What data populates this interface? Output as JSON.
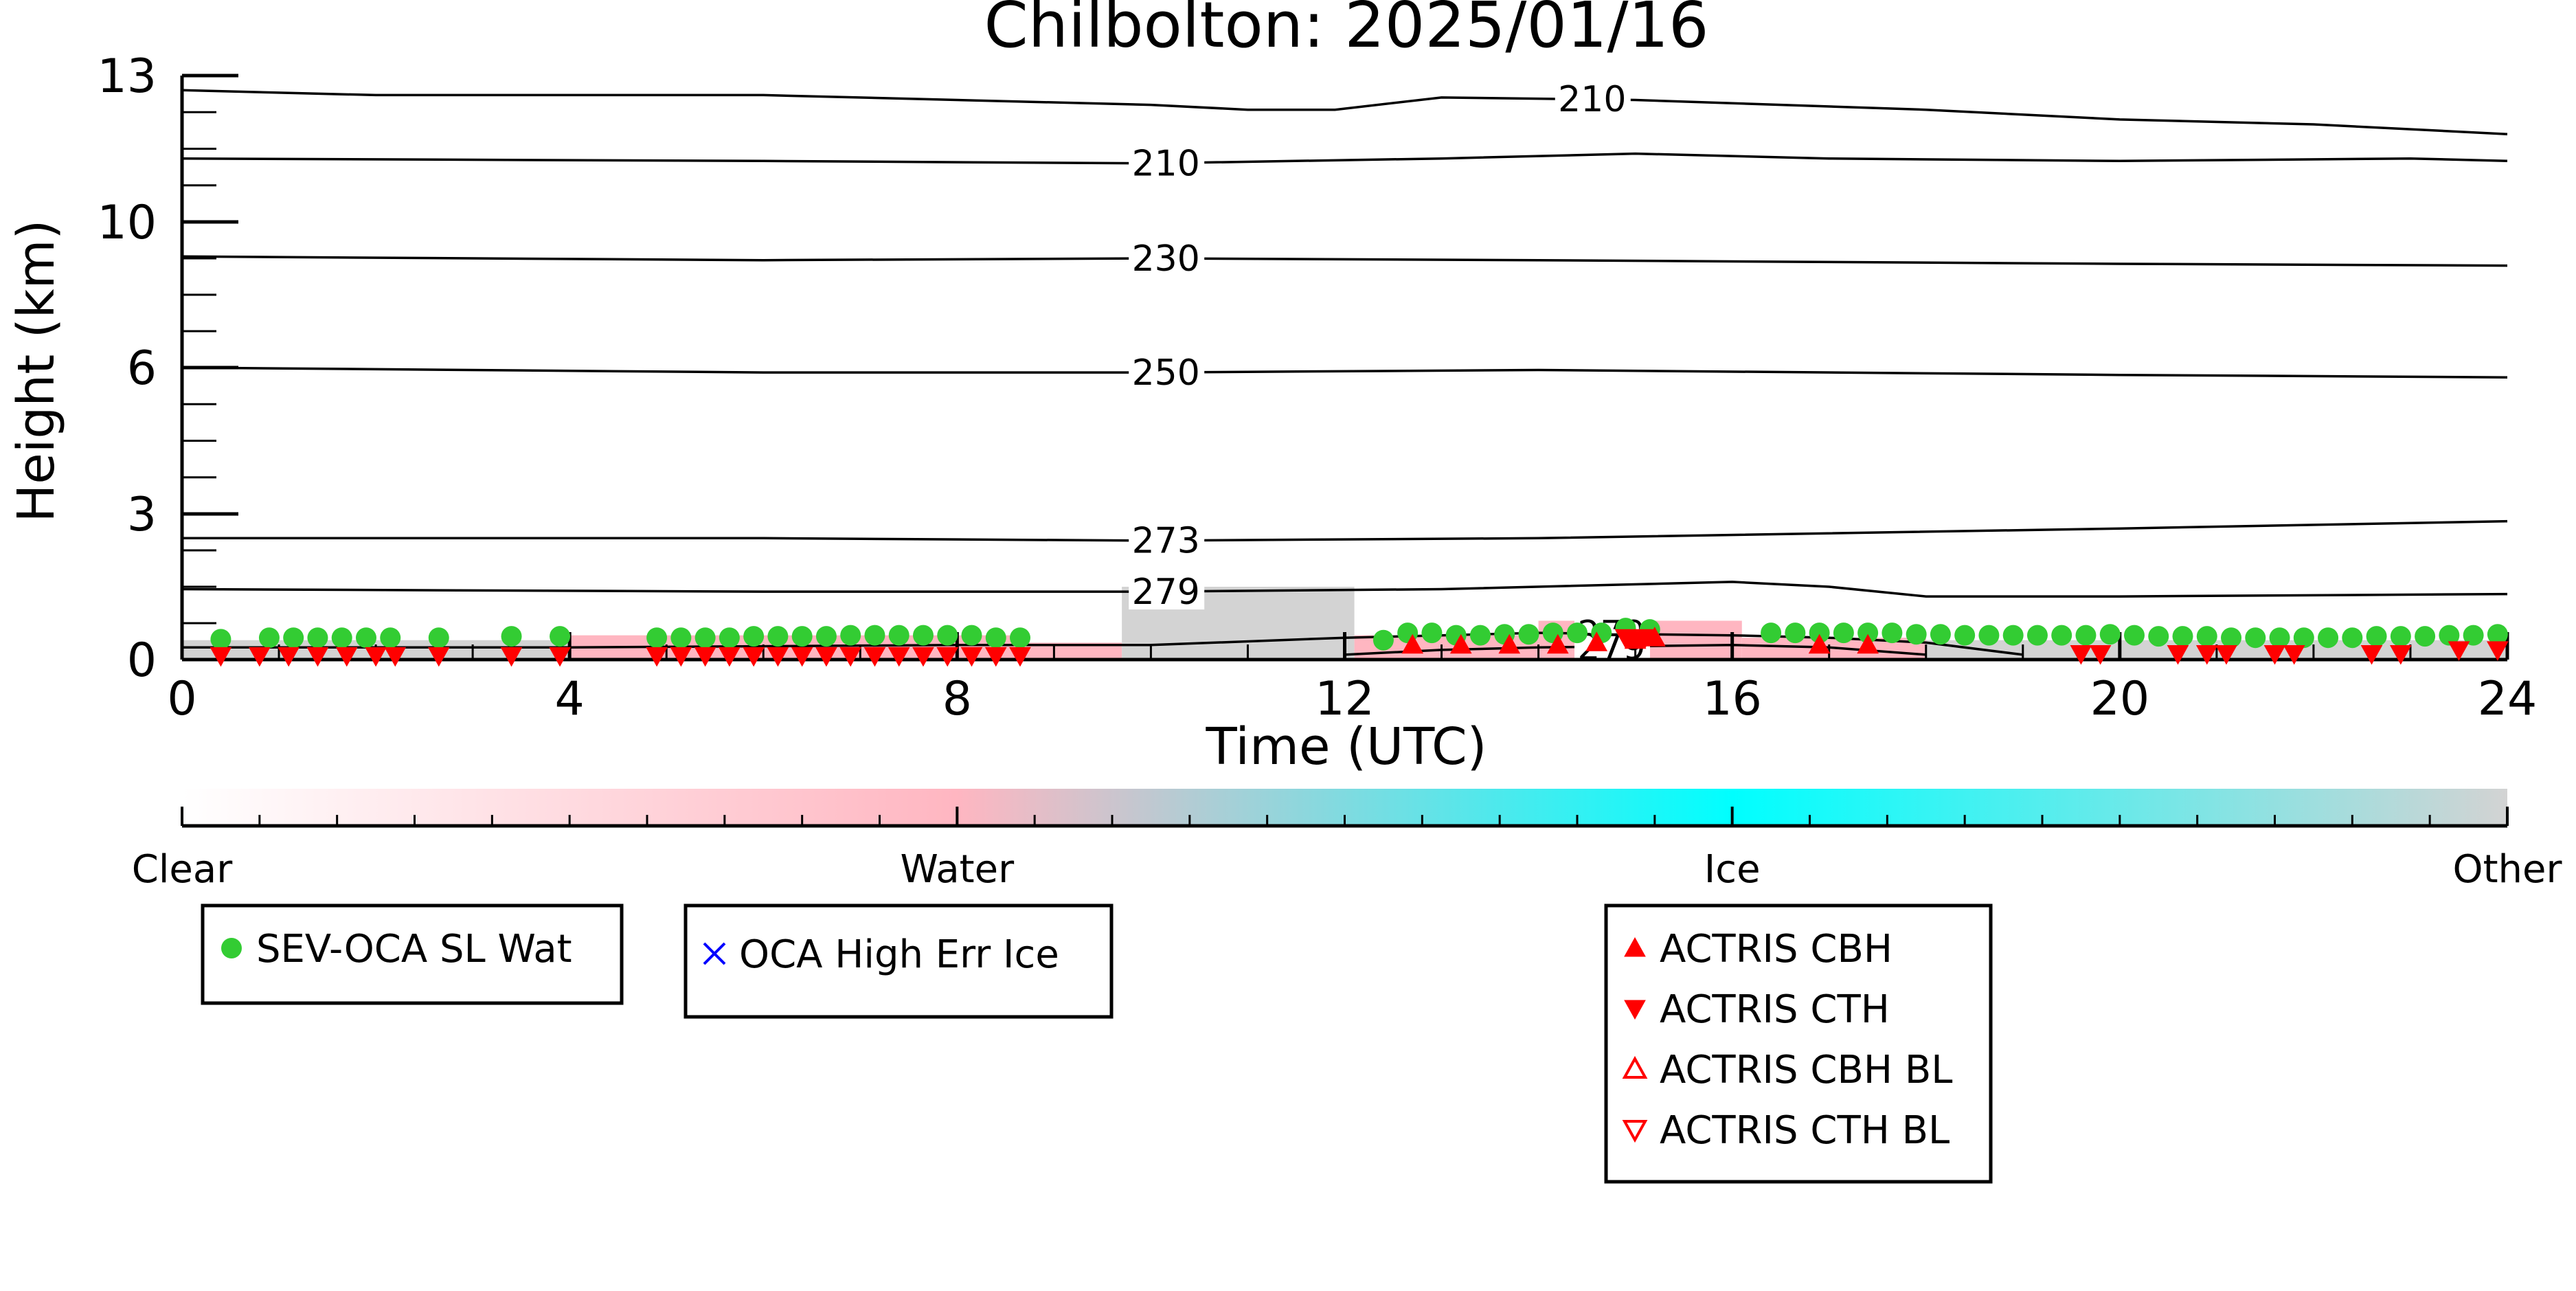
{
  "chart_data": {
    "type": "scatter",
    "title": "Chilbolton: 2025/01/16",
    "xlabel": "Time (UTC)",
    "ylabel": "Height (km)",
    "xlim": [
      0,
      24
    ],
    "x_ticks": [
      0,
      4,
      8,
      12,
      16,
      20,
      24
    ],
    "y_ticks": [
      0,
      3,
      6,
      10,
      13
    ],
    "y_scale": "nonlinear (tick labels 0, 3, 6, 10, 13 at equal spacing)",
    "grid": false,
    "background_classification": {
      "colorbar_labels": [
        "Clear",
        "Water",
        "Ice",
        "Other"
      ],
      "colorbar_colors": [
        "#ffffff",
        "#ffb6c1",
        "#00ffff",
        "#d3d3d3"
      ],
      "segments": [
        {
          "from": 0.0,
          "to": 4.0,
          "top_km": 0.4,
          "class": "Other"
        },
        {
          "from": 4.0,
          "to": 8.7,
          "top_km": 0.5,
          "class": "Water"
        },
        {
          "from": 8.7,
          "to": 9.7,
          "top_km": 0.35,
          "class": "Water"
        },
        {
          "from": 9.7,
          "to": 12.1,
          "top_km": 1.5,
          "class": "Other"
        },
        {
          "from": 12.1,
          "to": 14.0,
          "top_km": 0.5,
          "class": "Water"
        },
        {
          "from": 14.0,
          "to": 16.1,
          "top_km": 0.8,
          "class": "Water"
        },
        {
          "from": 16.1,
          "to": 18.0,
          "top_km": 0.45,
          "class": "Water"
        },
        {
          "from": 18.0,
          "to": 24.0,
          "top_km": 0.4,
          "class": "Other"
        }
      ]
    },
    "temperature_contours": [
      {
        "label": "210",
        "label_x": 14.2,
        "points": [
          [
            0,
            12.7
          ],
          [
            2,
            12.6
          ],
          [
            6,
            12.6
          ],
          [
            10,
            12.4
          ],
          [
            11,
            12.3
          ],
          [
            11.9,
            12.3
          ],
          [
            13,
            12.55
          ],
          [
            15,
            12.5
          ],
          [
            18,
            12.3
          ],
          [
            20,
            12.1
          ],
          [
            22,
            12.0
          ],
          [
            24,
            11.8
          ]
        ]
      },
      {
        "label": "210",
        "label_x": 9.8,
        "points": [
          [
            0,
            11.3
          ],
          [
            6,
            11.25
          ],
          [
            10,
            11.2
          ],
          [
            13,
            11.3
          ],
          [
            15,
            11.4
          ],
          [
            17,
            11.3
          ],
          [
            20,
            11.25
          ],
          [
            23,
            11.3
          ],
          [
            24,
            11.25
          ]
        ]
      },
      {
        "label": "230",
        "label_x": 9.8,
        "points": [
          [
            0,
            9.05
          ],
          [
            6,
            8.95
          ],
          [
            10,
            9.0
          ],
          [
            14,
            8.95
          ],
          [
            20,
            8.85
          ],
          [
            24,
            8.8
          ]
        ]
      },
      {
        "label": "250",
        "label_x": 9.8,
        "points": [
          [
            0,
            6.0
          ],
          [
            6,
            5.9
          ],
          [
            10,
            5.9
          ],
          [
            14,
            5.95
          ],
          [
            20,
            5.85
          ],
          [
            24,
            5.8
          ]
        ]
      },
      {
        "label": "273",
        "label_x": 9.8,
        "points": [
          [
            0,
            2.5
          ],
          [
            6,
            2.5
          ],
          [
            10,
            2.45
          ],
          [
            14,
            2.5
          ],
          [
            20,
            2.7
          ],
          [
            24,
            2.85
          ]
        ]
      },
      {
        "label": "279",
        "label_x": 9.8,
        "points": [
          [
            0,
            1.45
          ],
          [
            6,
            1.4
          ],
          [
            10,
            1.4
          ],
          [
            13,
            1.45
          ],
          [
            16,
            1.6
          ],
          [
            17,
            1.5
          ],
          [
            18,
            1.3
          ],
          [
            20,
            1.3
          ],
          [
            24,
            1.35
          ]
        ]
      },
      {
        "label": "279",
        "label_x": 14.4,
        "points": [
          [
            0,
            0.25
          ],
          [
            4,
            0.25
          ],
          [
            8,
            0.3
          ],
          [
            10,
            0.3
          ],
          [
            12,
            0.45
          ],
          [
            13,
            0.5
          ],
          [
            14,
            0.55
          ],
          [
            16,
            0.5
          ],
          [
            17,
            0.45
          ],
          [
            18,
            0.35
          ],
          [
            19,
            0.1
          ]
        ]
      },
      {
        "label": "279",
        "label_x": 14.4,
        "points": [
          [
            12,
            0.1
          ],
          [
            13,
            0.2
          ],
          [
            14,
            0.25
          ],
          [
            16,
            0.3
          ],
          [
            17,
            0.25
          ],
          [
            18,
            0.1
          ]
        ]
      }
    ],
    "series": [
      {
        "name": "SEV-OCA SL Wat",
        "marker": "filled-circle",
        "color": "#33cc33",
        "x": [
          0.4,
          0.9,
          1.15,
          1.4,
          1.65,
          1.9,
          2.15,
          2.65,
          3.4,
          3.9,
          4.9,
          5.15,
          5.4,
          5.65,
          5.9,
          6.15,
          6.4,
          6.65,
          6.9,
          7.15,
          7.4,
          7.65,
          7.9,
          8.15,
          8.4,
          8.65,
          12.4,
          12.65,
          12.9,
          13.15,
          13.4,
          13.65,
          13.9,
          14.15,
          14.4,
          14.65,
          14.9,
          15.15,
          16.4,
          16.65,
          16.9,
          17.15,
          17.4,
          17.65,
          17.9,
          18.15,
          18.4,
          18.65,
          18.9,
          19.15,
          19.4,
          19.65,
          19.9,
          20.15,
          20.4,
          20.65,
          20.9,
          21.15,
          21.4,
          21.65,
          21.9,
          22.15,
          22.4,
          22.65,
          22.9,
          23.15,
          23.4,
          23.65,
          23.9
        ],
        "y": [
          0.42,
          0.45,
          0.45,
          0.45,
          0.45,
          0.45,
          0.45,
          0.45,
          0.48,
          0.48,
          0.45,
          0.45,
          0.45,
          0.45,
          0.48,
          0.48,
          0.48,
          0.48,
          0.5,
          0.5,
          0.5,
          0.5,
          0.5,
          0.5,
          0.45,
          0.45,
          0.4,
          0.55,
          0.55,
          0.5,
          0.5,
          0.52,
          0.52,
          0.55,
          0.55,
          0.55,
          0.65,
          0.62,
          0.55,
          0.55,
          0.55,
          0.55,
          0.55,
          0.55,
          0.52,
          0.52,
          0.5,
          0.5,
          0.5,
          0.5,
          0.5,
          0.5,
          0.52,
          0.5,
          0.48,
          0.48,
          0.48,
          0.45,
          0.45,
          0.45,
          0.45,
          0.45,
          0.45,
          0.48,
          0.48,
          0.48,
          0.5,
          0.5,
          0.52
        ]
      },
      {
        "name": "OCA High Err Ice",
        "marker": "x",
        "color": "#0000ff",
        "x": [],
        "y": []
      },
      {
        "name": "ACTRIS CBH",
        "marker": "filled-triangle-up",
        "color": "#ff0000",
        "x": [
          12.7,
          13.2,
          13.7,
          14.2,
          14.6,
          15.0,
          15.2,
          16.9,
          17.4
        ],
        "y": [
          0.3,
          0.3,
          0.3,
          0.3,
          0.35,
          0.4,
          0.45,
          0.3,
          0.3
        ]
      },
      {
        "name": "ACTRIS CTH",
        "marker": "filled-triangle-down",
        "color": "#ff0000",
        "x": [
          0.4,
          0.8,
          1.1,
          1.4,
          1.7,
          2.0,
          2.2,
          2.65,
          3.4,
          3.9,
          4.9,
          5.15,
          5.4,
          5.65,
          5.9,
          6.15,
          6.4,
          6.65,
          6.9,
          7.15,
          7.4,
          7.65,
          7.9,
          8.15,
          8.4,
          8.65,
          14.9,
          15.1,
          19.6,
          19.8,
          20.6,
          20.9,
          21.1,
          21.6,
          21.8,
          22.6,
          22.9,
          23.5,
          23.9
        ],
        "y": [
          0.08,
          0.08,
          0.08,
          0.08,
          0.08,
          0.08,
          0.08,
          0.08,
          0.08,
          0.08,
          0.08,
          0.08,
          0.08,
          0.08,
          0.08,
          0.08,
          0.08,
          0.08,
          0.08,
          0.08,
          0.08,
          0.08,
          0.08,
          0.08,
          0.08,
          0.08,
          0.45,
          0.45,
          0.12,
          0.12,
          0.12,
          0.12,
          0.12,
          0.12,
          0.12,
          0.12,
          0.12,
          0.2,
          0.2
        ]
      },
      {
        "name": "ACTRIS CBH BL",
        "marker": "open-triangle-up",
        "color": "#ff0000",
        "x": [],
        "y": []
      },
      {
        "name": "ACTRIS CTH BL",
        "marker": "open-triangle-down",
        "color": "#ff0000",
        "x": [],
        "y": []
      }
    ],
    "legend_boxes": [
      [
        "SEV-OCA SL Wat"
      ],
      [
        "OCA High Err Ice"
      ],
      [
        "ACTRIS CBH",
        "ACTRIS CTH",
        "ACTRIS CBH BL",
        "ACTRIS CTH BL"
      ]
    ]
  }
}
